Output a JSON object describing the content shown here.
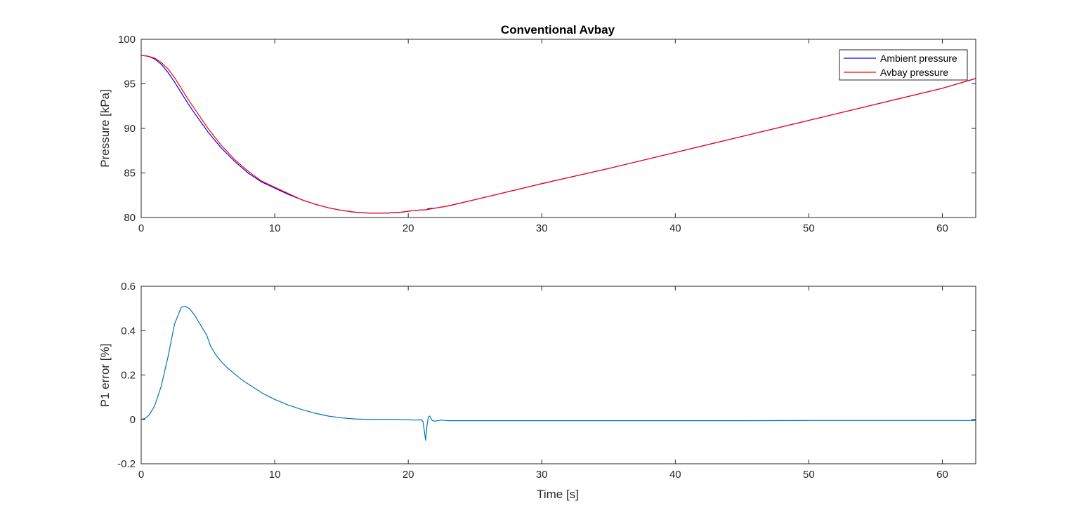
{
  "chart_data": [
    {
      "type": "line",
      "title": "Conventional Avbay",
      "xlabel": "",
      "ylabel": "Pressure [kPa]",
      "xlim": [
        0,
        62.5
      ],
      "ylim": [
        80,
        100
      ],
      "xticks": [
        0,
        10,
        20,
        30,
        40,
        50,
        60
      ],
      "yticks": [
        80,
        85,
        90,
        95,
        100
      ],
      "grid": false,
      "legend_position": "top-right",
      "series": [
        {
          "name": "Ambient pressure",
          "color": "#0000ff",
          "x": [
            0,
            0.5,
            1,
            1.5,
            2,
            2.5,
            3,
            3.5,
            4,
            5,
            6,
            7,
            8,
            9,
            10,
            11,
            12,
            13,
            14,
            15,
            16,
            17,
            17.6,
            18.5,
            19.5,
            20.5,
            21,
            21.3,
            21.5,
            22,
            23,
            25,
            30,
            35,
            40,
            45,
            50,
            55,
            60,
            62.5
          ],
          "y": [
            98.2,
            98.1,
            97.8,
            97.2,
            96.3,
            95.2,
            94.0,
            92.8,
            91.7,
            89.6,
            87.8,
            86.3,
            85.0,
            84.0,
            83.3,
            82.6,
            82.0,
            81.5,
            81.1,
            80.8,
            80.6,
            80.5,
            80.5,
            80.5,
            80.6,
            80.8,
            80.85,
            80.85,
            81.0,
            81.05,
            81.3,
            82.0,
            83.8,
            85.5,
            87.3,
            89.1,
            90.9,
            92.7,
            94.5,
            95.6
          ]
        },
        {
          "name": "Avbay pressure",
          "color": "#ff0000",
          "x": [
            0,
            0.5,
            1,
            1.5,
            2,
            2.5,
            3,
            3.5,
            4,
            5,
            6,
            7,
            8,
            9,
            10,
            11,
            12,
            13,
            14,
            15,
            16,
            17,
            17.6,
            18.5,
            19.5,
            20.5,
            21,
            21.3,
            21.5,
            22,
            23,
            25,
            30,
            35,
            40,
            45,
            50,
            55,
            60,
            62.5
          ],
          "y": [
            98.2,
            98.1,
            97.9,
            97.4,
            96.7,
            95.7,
            94.5,
            93.3,
            92.2,
            90.0,
            88.1,
            86.5,
            85.2,
            84.1,
            83.4,
            82.7,
            82.0,
            81.5,
            81.1,
            80.8,
            80.6,
            80.5,
            80.5,
            80.5,
            80.6,
            80.8,
            80.85,
            80.85,
            80.9,
            81.05,
            81.3,
            82.0,
            83.8,
            85.5,
            87.3,
            89.1,
            90.9,
            92.7,
            94.5,
            95.6
          ]
        }
      ]
    },
    {
      "type": "line",
      "title": "",
      "xlabel": "Time [s]",
      "ylabel": "P1 error [%]",
      "xlim": [
        0,
        62.5
      ],
      "ylim": [
        -0.2,
        0.6
      ],
      "xticks": [
        0,
        10,
        20,
        30,
        40,
        50,
        60
      ],
      "yticks": [
        -0.2,
        0,
        0.2,
        0.4,
        0.6
      ],
      "grid": false,
      "series": [
        {
          "color": "#0072bd",
          "x": [
            0,
            0.3,
            0.6,
            1,
            1.5,
            2,
            2.5,
            3,
            3.3,
            3.6,
            4,
            4.5,
            4.9,
            5.2,
            5.6,
            6,
            6.5,
            7,
            7.5,
            8,
            8.5,
            8.8,
            9,
            9.5,
            10,
            11,
            12,
            13,
            14,
            15,
            16,
            17,
            18,
            19,
            20,
            20.5,
            21,
            21.1,
            21.2,
            21.3,
            21.4,
            21.5,
            21.6,
            21.8,
            22,
            22.3,
            22.5,
            22.8,
            23,
            25,
            30,
            35,
            40,
            45,
            50,
            55,
            60,
            62.5
          ],
          "y": [
            0,
            0.005,
            0.02,
            0.06,
            0.15,
            0.28,
            0.43,
            0.505,
            0.51,
            0.5,
            0.47,
            0.42,
            0.38,
            0.33,
            0.29,
            0.26,
            0.23,
            0.205,
            0.18,
            0.16,
            0.14,
            0.13,
            0.12,
            0.105,
            0.09,
            0.065,
            0.045,
            0.028,
            0.015,
            0.007,
            0.002,
            0,
            0,
            0,
            -0.002,
            -0.003,
            -0.002,
            -0.01,
            -0.05,
            -0.095,
            -0.03,
            0.01,
            0.015,
            -0.005,
            -0.008,
            -0.005,
            -0.003,
            -0.005,
            -0.006,
            -0.006,
            -0.006,
            -0.006,
            -0.006,
            -0.006,
            -0.005,
            -0.005,
            -0.005,
            -0.005
          ]
        }
      ]
    }
  ]
}
